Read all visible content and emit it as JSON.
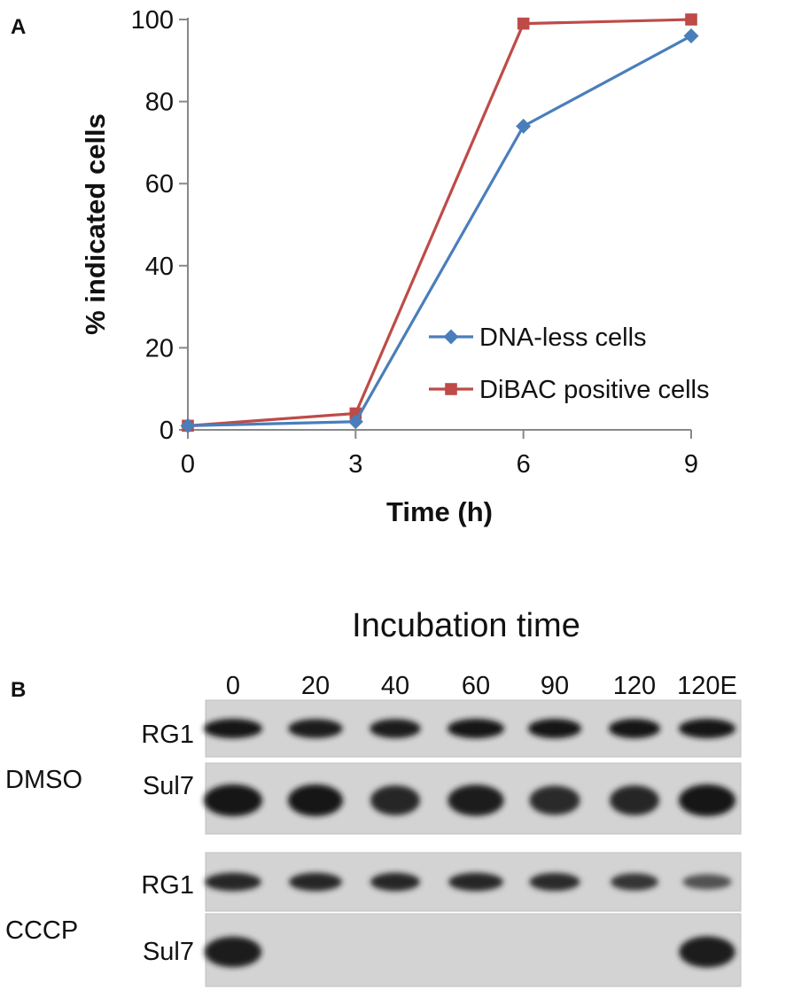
{
  "panels": {
    "a_label": "A",
    "b_label": "B"
  },
  "chart_data": {
    "type": "line",
    "title": "",
    "xlabel": "Time (h)",
    "ylabel": "% indicated cells",
    "x": [
      0,
      3,
      6,
      9
    ],
    "xticks": [
      "0",
      "3",
      "6",
      "9"
    ],
    "yticks": [
      "0",
      "20",
      "40",
      "60",
      "80",
      "100"
    ],
    "xlim": [
      0,
      9
    ],
    "ylim": [
      0,
      100
    ],
    "grid": false,
    "legend_position": "right",
    "series": [
      {
        "name": "DNA-less cells",
        "values": [
          1,
          2,
          74,
          96
        ],
        "color": "#4a7ebb",
        "marker": "diamond"
      },
      {
        "name": "DiBAC positive cells",
        "values": [
          1,
          4,
          99,
          100
        ],
        "color": "#be4b48",
        "marker": "square"
      }
    ]
  },
  "blot": {
    "title": "Incubation time",
    "lanes": [
      "0",
      "20",
      "40",
      "60",
      "90",
      "120",
      "120E"
    ],
    "conditions": [
      {
        "name": "DMSO",
        "rows": [
          {
            "label": "RG1",
            "intensity": [
              1.0,
              0.95,
              0.95,
              1.0,
              1.0,
              1.0,
              1.0
            ]
          },
          {
            "label": "Sul7",
            "intensity": [
              1.0,
              1.0,
              0.85,
              0.95,
              0.8,
              0.85,
              1.0
            ]
          }
        ]
      },
      {
        "name": "CCCP",
        "rows": [
          {
            "label": "RG1",
            "intensity": [
              0.85,
              0.85,
              0.85,
              0.85,
              0.8,
              0.7,
              0.45
            ]
          },
          {
            "label": "Sul7",
            "intensity": [
              0.9,
              0,
              0,
              0,
              0,
              0,
              0.95
            ]
          }
        ]
      }
    ]
  }
}
